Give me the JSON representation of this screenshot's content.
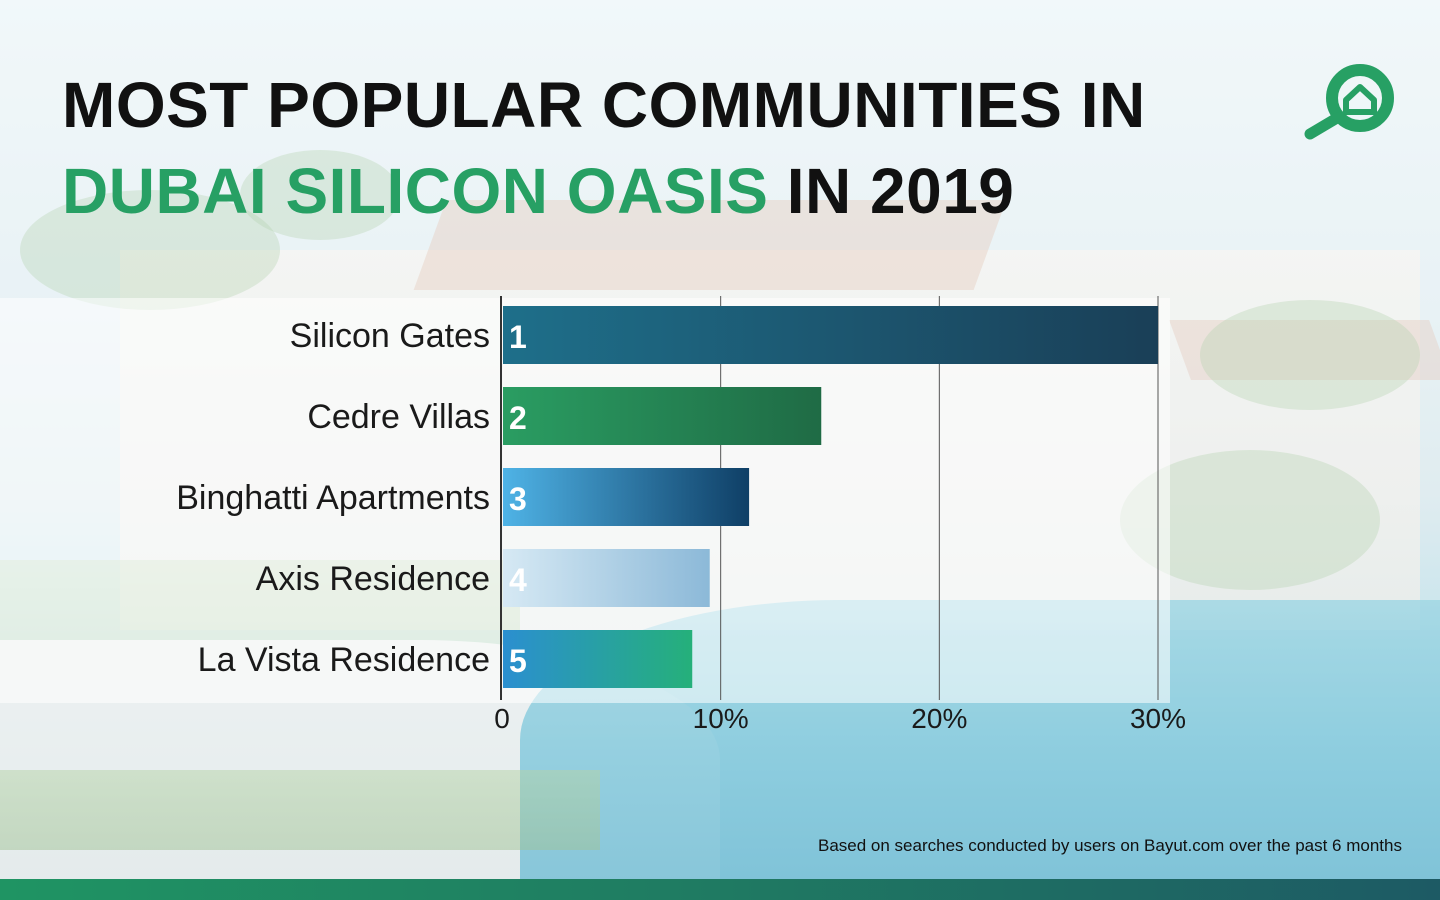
{
  "title": {
    "line1": "MOST POPULAR COMMUNITIES IN",
    "line2_accent": "DUBAI SILICON OASIS",
    "line2_rest": " IN 2019"
  },
  "colors": {
    "accent_green": "#27a064",
    "bar1": [
      "#1e6f8a",
      "#1a3f57"
    ],
    "bar2": [
      "#2a9d62",
      "#1f6b45"
    ],
    "bar3": [
      "#4fb3e6",
      "#0f3f66"
    ],
    "bar4": [
      "#d6e9f4",
      "#8cb9d8"
    ],
    "bar5": [
      "#2b8fd0",
      "#25b07a"
    ]
  },
  "logo": {
    "icon": "search-house-icon"
  },
  "chart_data": {
    "type": "bar",
    "orientation": "horizontal",
    "categories": [
      "Silicon Gates",
      "Cedre Villas",
      "Binghatti Apartments",
      "Axis Residence",
      "La Vista Residence"
    ],
    "ranks": [
      "1",
      "2",
      "3",
      "4",
      "5"
    ],
    "values": [
      30,
      14.6,
      11.3,
      9.5,
      8.7
    ],
    "xlim": [
      0,
      30
    ],
    "xticks": [
      "0",
      "10%",
      "20%",
      "30%"
    ],
    "xtick_values": [
      0,
      10,
      20,
      30
    ],
    "grid": true,
    "title": "",
    "xlabel": "",
    "ylabel": ""
  },
  "footnote": "Based on searches conducted by users on Bayut.com over the past 6 months"
}
